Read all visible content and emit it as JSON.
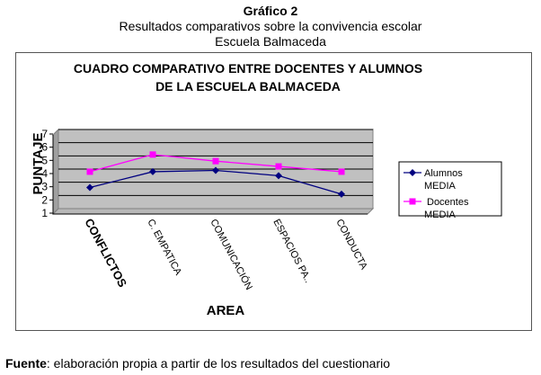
{
  "caption": {
    "title": "Gráfico 2",
    "subtitle": "Resultados comparativos sobre la convivencia escolar",
    "school": "Escuela Balmaceda"
  },
  "chart_data": {
    "type": "line",
    "title_lines": [
      "CUADRO COMPARATIVO ENTRE DOCENTES Y ALUMNOS",
      "DE LA ESCUELA BALMACEDA"
    ],
    "xlabel": "AREA",
    "ylabel": "PUNTAJE",
    "categories": [
      "CONFLICTOS",
      "C. EMPATICA",
      "COMUNICACIÓN",
      "ESPACIOS PA..",
      "CONDUCTA"
    ],
    "ylim": [
      1,
      7
    ],
    "yticks": [
      1,
      2,
      3,
      4,
      5,
      6,
      7
    ],
    "grid": true,
    "legend_position": "right",
    "plot_background": "#c0c0c0",
    "series": [
      {
        "name": "Alumnos MEDIA",
        "legend_lines": [
          "Alumnos",
          "MEDIA"
        ],
        "color": "#000080",
        "marker": "diamond",
        "values": [
          2.6,
          3.8,
          3.9,
          3.5,
          2.1
        ]
      },
      {
        "name": "Docentes MEDIA",
        "legend_lines": [
          "Docentes",
          "MEDIA"
        ],
        "color": "#ff00ff",
        "marker": "square",
        "values": [
          3.8,
          5.1,
          4.6,
          4.2,
          3.8
        ]
      }
    ]
  },
  "source": {
    "label": "Fuente",
    "text": ": elaboración propia a partir de los resultados del cuestionario"
  }
}
